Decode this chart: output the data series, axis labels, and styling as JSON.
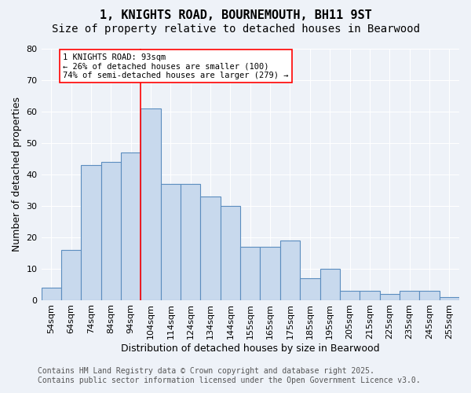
{
  "title": "1, KNIGHTS ROAD, BOURNEMOUTH, BH11 9ST",
  "subtitle": "Size of property relative to detached houses in Bearwood",
  "xlabel": "Distribution of detached houses by size in Bearwood",
  "ylabel": "Number of detached properties",
  "categories": [
    "54sqm",
    "64sqm",
    "74sqm",
    "84sqm",
    "94sqm",
    "104sqm",
    "114sqm",
    "124sqm",
    "134sqm",
    "144sqm",
    "155sqm",
    "165sqm",
    "175sqm",
    "185sqm",
    "195sqm",
    "205sqm",
    "215sqm",
    "225sqm",
    "235sqm",
    "245sqm",
    "255sqm"
  ],
  "values": [
    4,
    16,
    43,
    44,
    47,
    61,
    37,
    37,
    33,
    30,
    17,
    17,
    19,
    7,
    10,
    3,
    3,
    2,
    3,
    3,
    1
  ],
  "bar_color": "#c8d9ed",
  "bar_edge_color": "#5b8dbf",
  "bar_edge_width": 0.8,
  "ylim": [
    0,
    80
  ],
  "yticks": [
    0,
    10,
    20,
    30,
    40,
    50,
    60,
    70,
    80
  ],
  "red_line_x": 4.5,
  "annotation_text": "1 KNIGHTS ROAD: 93sqm\n← 26% of detached houses are smaller (100)\n74% of semi-detached houses are larger (279) →",
  "footer_line1": "Contains HM Land Registry data © Crown copyright and database right 2025.",
  "footer_line2": "Contains public sector information licensed under the Open Government Licence v3.0.",
  "bg_color": "#eef2f8",
  "grid_color": "#ffffff",
  "title_fontsize": 11,
  "subtitle_fontsize": 10,
  "axis_label_fontsize": 9,
  "tick_fontsize": 8,
  "annotation_fontsize": 7.5,
  "footer_fontsize": 7
}
